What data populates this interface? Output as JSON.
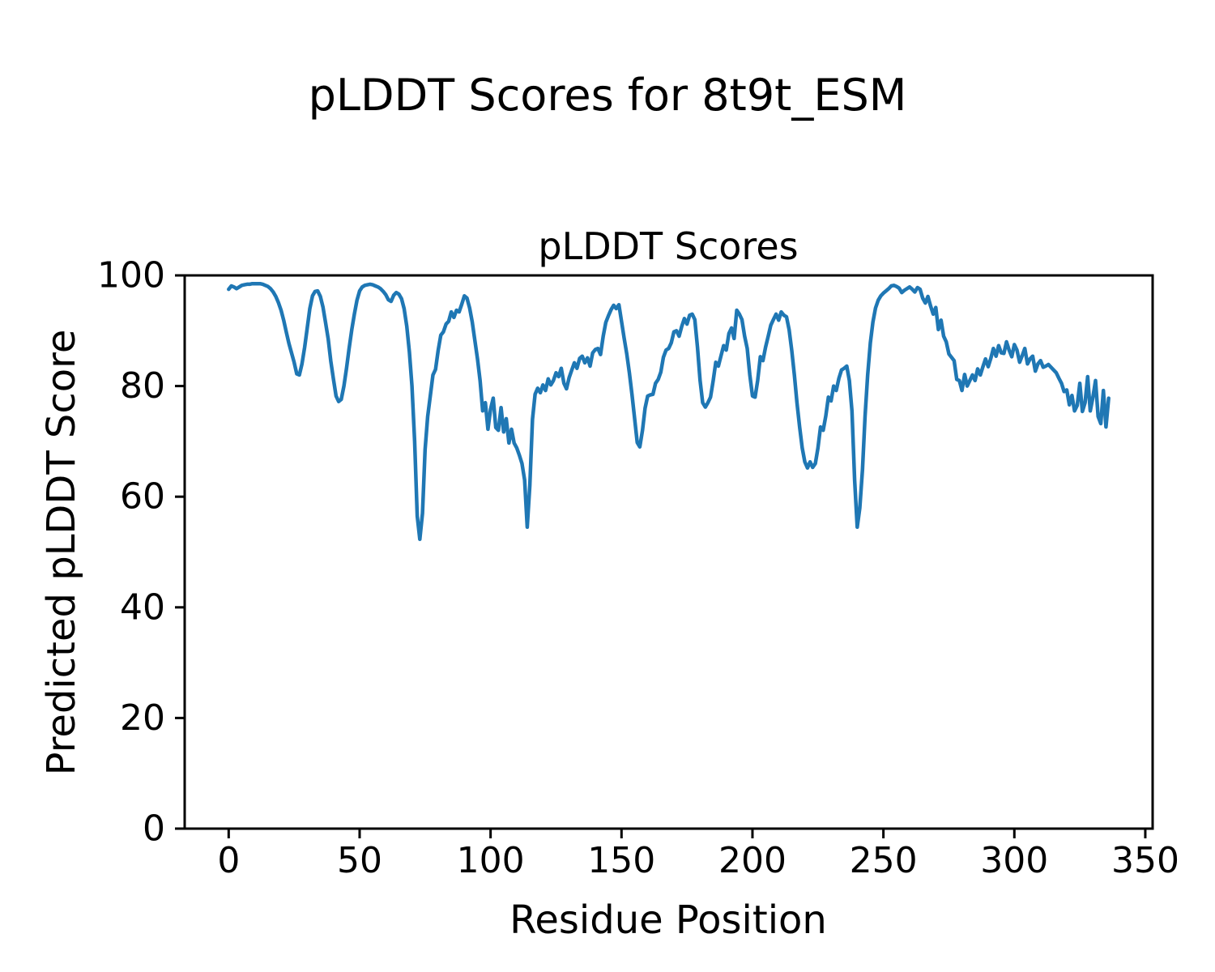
{
  "figure": {
    "title": "pLDDT Scores for 8t9t_ESM",
    "background_color": "#ffffff",
    "text_color": "#000000"
  },
  "chart_data": {
    "type": "line",
    "title": "pLDDT Scores",
    "xlabel": "Residue Position",
    "ylabel": "Predicted pLDDT Score",
    "x_range": [
      0,
      336
    ],
    "x_step": 1,
    "xlim": [
      -16.8,
      352.8
    ],
    "ylim": [
      0,
      100
    ],
    "xticks": [
      0,
      50,
      100,
      150,
      200,
      250,
      300,
      350
    ],
    "yticks": [
      0,
      20,
      40,
      60,
      80,
      100
    ],
    "grid": false,
    "legend": null,
    "line_color": "#1f77b4",
    "values": [
      97.5,
      98.1,
      97.9,
      97.6,
      97.9,
      98.2,
      98.3,
      98.4,
      98.4,
      98.5,
      98.5,
      98.5,
      98.5,
      98.4,
      98.2,
      98.0,
      97.6,
      97.0,
      96.2,
      95.1,
      93.7,
      91.9,
      89.8,
      87.7,
      86.0,
      84.3,
      82.2,
      82.0,
      84.0,
      87.0,
      90.5,
      94.0,
      96.3,
      97.1,
      97.2,
      96.2,
      94.3,
      91.5,
      88.5,
      84.5,
      81.3,
      78.2,
      77.2,
      77.6,
      80.0,
      83.2,
      86.8,
      90.2,
      93.0,
      95.5,
      97.2,
      97.9,
      98.2,
      98.3,
      98.4,
      98.3,
      98.1,
      97.9,
      97.6,
      97.1,
      96.5,
      95.6,
      95.3,
      96.4,
      96.9,
      96.6,
      95.8,
      94.0,
      90.8,
      86.2,
      80.0,
      70.0,
      56.5,
      52.3,
      57.0,
      68.5,
      74.5,
      78.3,
      82.0,
      83.0,
      86.5,
      89.2,
      89.8,
      91.2,
      91.7,
      93.4,
      92.4,
      93.7,
      93.4,
      94.8,
      96.3,
      95.9,
      94.1,
      91.6,
      88.3,
      84.9,
      81.0,
      75.5,
      77.0,
      72.2,
      75.8,
      77.8,
      72.5,
      72.0,
      76.1,
      71.7,
      74.1,
      69.7,
      72.2,
      69.7,
      68.8,
      67.5,
      66.0,
      63.0,
      54.5,
      62.0,
      74.0,
      78.5,
      79.6,
      78.8,
      80.2,
      79.2,
      81.3,
      80.2,
      81.0,
      82.4,
      81.7,
      83.2,
      80.5,
      79.5,
      81.5,
      82.9,
      84.2,
      83.2,
      85.0,
      85.4,
      84.2,
      85.1,
      83.6,
      86.0,
      86.6,
      86.8,
      85.7,
      89.0,
      91.5,
      92.7,
      93.8,
      94.6,
      94.0,
      94.7,
      91.7,
      88.7,
      85.8,
      82.4,
      78.5,
      74.1,
      69.8,
      69.0,
      72.0,
      76.0,
      78.2,
      78.4,
      78.5,
      80.5,
      81.2,
      82.5,
      85.2,
      86.5,
      86.8,
      87.8,
      89.8,
      90.0,
      89.0,
      90.8,
      92.2,
      91.2,
      92.8,
      93.0,
      92.0,
      87.0,
      81.0,
      77.0,
      76.2,
      77.0,
      78.0,
      81.0,
      84.3,
      83.6,
      85.5,
      87.3,
      86.5,
      89.5,
      90.5,
      88.6,
      93.7,
      93.0,
      92.0,
      89.0,
      86.8,
      82.0,
      78.2,
      78.0,
      81.0,
      85.3,
      84.6,
      87.0,
      89.0,
      91.0,
      92.0,
      93.0,
      91.9,
      93.4,
      92.8,
      92.5,
      90.2,
      86.4,
      82.0,
      77.0,
      72.6,
      68.8,
      66.3,
      65.2,
      66.3,
      65.3,
      66.0,
      68.8,
      72.6,
      72.0,
      74.6,
      78.0,
      77.3,
      80.0,
      79.2,
      81.4,
      82.9,
      83.2,
      83.6,
      81.0,
      75.5,
      63.0,
      54.5,
      58.0,
      64.9,
      74.6,
      82.0,
      87.8,
      91.6,
      94.1,
      95.5,
      96.3,
      96.8,
      97.2,
      97.6,
      98.1,
      98.2,
      98.0,
      97.7,
      96.9,
      97.3,
      97.6,
      97.9,
      97.5,
      97.0,
      97.8,
      97.5,
      95.9,
      95.0,
      96.2,
      94.5,
      93.0,
      94.2,
      90.2,
      91.9,
      89.0,
      88.0,
      85.8,
      85.2,
      84.6,
      81.2,
      81.0,
      79.2,
      82.1,
      80.0,
      81.0,
      82.0,
      81.0,
      83.1,
      82.0,
      83.5,
      84.9,
      83.5,
      85.0,
      86.8,
      85.4,
      87.3,
      86.0,
      85.9,
      88.0,
      86.5,
      85.3,
      87.5,
      86.5,
      84.3,
      85.5,
      86.8,
      84.0,
      84.9,
      85.4,
      82.7,
      84.0,
      84.6,
      83.4,
      83.6,
      83.9,
      83.4,
      82.9,
      82.4,
      81.4,
      80.5,
      79.0,
      79.3,
      76.6,
      78.3,
      75.5,
      76.5,
      80.5,
      75.4,
      77.0,
      81.7,
      75.5,
      78.0,
      81.0,
      74.5,
      73.2,
      79.2,
      72.6,
      77.8
    ]
  }
}
